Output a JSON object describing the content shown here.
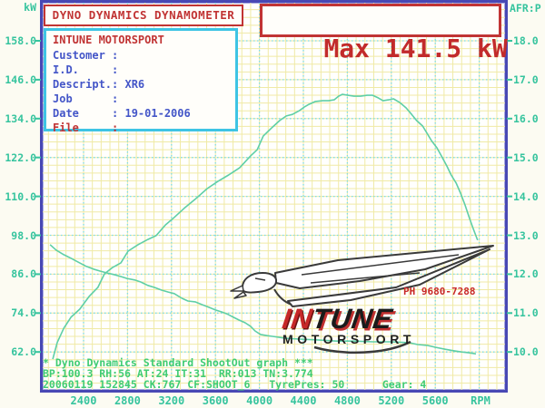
{
  "colors": {
    "red": "#c13434",
    "blue": "#4456c8",
    "cyan_border": "#3ec4e4",
    "teal_axis": "#36c49e",
    "green_status": "#40cc74",
    "curve_green": "#5ecfa6",
    "grid_major_cyan": "#7edce8",
    "grid_minor_yellow": "#f0eaa6",
    "plot_border_blue": "#4848b4"
  },
  "header": {
    "dyno_title": "DYNO DYNAMICS DYNAMOMETER",
    "max_label": "Max 141.5 kW"
  },
  "info_box": {
    "title": "INTUNE MOTORSPORT",
    "rows": [
      {
        "text": "Customer :",
        "accent": "blue"
      },
      {
        "text": "I.D.     :",
        "accent": "blue"
      },
      {
        "text": "Descript.: XR6",
        "accent": "blue"
      },
      {
        "text": "Job      :",
        "accent": "blue"
      },
      {
        "text": "Date     : 19-01-2006",
        "accent": "blue"
      },
      {
        "text": "File     :",
        "accent": "red"
      }
    ]
  },
  "logo": {
    "phone": "PH 9680-7288",
    "brand_in": "IN",
    "brand_tune": "TUNE",
    "brand_sub": "MOTORSPORT"
  },
  "status_lines": [
    "* Dyno Dynamics Standard ShootOut graph ***",
    "BP:100.3 RH:56 AT:24 IT:31  RR:013 TN:3.774",
    "20060119 152845 CK:767 CF:SHOOT_6   TyrePres: 50      Gear: 4"
  ],
  "chart_data": {
    "type": "line",
    "title": "Max 141.5 kW",
    "x_unit": "RPM",
    "y_left_unit": "kW",
    "y_right_unit": "AFR:P",
    "x_ticks": [
      "2400",
      "2800",
      "3200",
      "3600",
      "4000",
      "4400",
      "4800",
      "5200",
      "5600"
    ],
    "y_left_ticks": [
      "158.0",
      "146.0",
      "134.0",
      "122.0",
      "110.0",
      "98.0",
      "86.0",
      "74.0",
      "62.0"
    ],
    "y_right_ticks": [
      "18.0",
      "17.0",
      "16.0",
      "15.0",
      "14.0",
      "13.0",
      "12.0",
      "11.0",
      "10.0"
    ],
    "x_range_rpm": [
      2030,
      6230
    ],
    "y_left_range_kw": [
      58.6,
      158.0
    ],
    "y_right_range_afr": [
      9.0,
      18.0
    ],
    "grid": "on",
    "series": [
      {
        "name": "power_kw",
        "axis": "left",
        "points": [
          [
            2120,
            59.8
          ],
          [
            2160,
            64.9
          ],
          [
            2220,
            69.3
          ],
          [
            2285,
            72.7
          ],
          [
            2365,
            75.2
          ],
          [
            2450,
            79.1
          ],
          [
            2530,
            81.9
          ],
          [
            2590,
            86.1
          ],
          [
            2665,
            88.1
          ],
          [
            2740,
            89.5
          ],
          [
            2805,
            93.1
          ],
          [
            2895,
            95.1
          ],
          [
            2985,
            96.7
          ],
          [
            3060,
            97.9
          ],
          [
            3145,
            101.2
          ],
          [
            3225,
            103.5
          ],
          [
            3315,
            106.3
          ],
          [
            3415,
            109.1
          ],
          [
            3525,
            112.4
          ],
          [
            3625,
            114.7
          ],
          [
            3720,
            116.6
          ],
          [
            3820,
            118.8
          ],
          [
            3920,
            122.5
          ],
          [
            3980,
            124.4
          ],
          [
            4035,
            128.6
          ],
          [
            4120,
            131.4
          ],
          [
            4185,
            133.4
          ],
          [
            4245,
            134.8
          ],
          [
            4300,
            135.3
          ],
          [
            4365,
            136.5
          ],
          [
            4410,
            137.6
          ],
          [
            4450,
            138.4
          ],
          [
            4510,
            139.3
          ],
          [
            4575,
            139.5
          ],
          [
            4630,
            139.5
          ],
          [
            4680,
            139.8
          ],
          [
            4720,
            140.9
          ],
          [
            4755,
            141.5
          ],
          [
            4805,
            141.2
          ],
          [
            4860,
            140.9
          ],
          [
            4920,
            140.9
          ],
          [
            4980,
            141.2
          ],
          [
            5030,
            141.2
          ],
          [
            5080,
            140.4
          ],
          [
            5125,
            139.5
          ],
          [
            5175,
            139.8
          ],
          [
            5220,
            140.1
          ],
          [
            5275,
            139.0
          ],
          [
            5335,
            137.3
          ],
          [
            5385,
            135.3
          ],
          [
            5430,
            133.4
          ],
          [
            5485,
            131.7
          ],
          [
            5525,
            129.5
          ],
          [
            5565,
            127.2
          ],
          [
            5615,
            125.0
          ],
          [
            5655,
            122.5
          ],
          [
            5705,
            119.4
          ],
          [
            5745,
            116.6
          ],
          [
            5790,
            114.1
          ],
          [
            5830,
            111.0
          ],
          [
            5870,
            107.4
          ],
          [
            5910,
            103.4
          ],
          [
            5945,
            100.1
          ],
          [
            5985,
            96.5
          ]
        ]
      },
      {
        "name": "afr",
        "axis": "right",
        "points": [
          [
            2095,
            12.76
          ],
          [
            2150,
            12.62
          ],
          [
            2220,
            12.5
          ],
          [
            2285,
            12.41
          ],
          [
            2350,
            12.31
          ],
          [
            2425,
            12.2
          ],
          [
            2490,
            12.13
          ],
          [
            2550,
            12.08
          ],
          [
            2615,
            12.03
          ],
          [
            2675,
            11.99
          ],
          [
            2740,
            11.94
          ],
          [
            2795,
            11.89
          ],
          [
            2865,
            11.85
          ],
          [
            2920,
            11.8
          ],
          [
            2985,
            11.71
          ],
          [
            3045,
            11.66
          ],
          [
            3110,
            11.59
          ],
          [
            3170,
            11.54
          ],
          [
            3225,
            11.5
          ],
          [
            3295,
            11.38
          ],
          [
            3350,
            11.31
          ],
          [
            3415,
            11.29
          ],
          [
            3475,
            11.22
          ],
          [
            3540,
            11.15
          ],
          [
            3600,
            11.08
          ],
          [
            3655,
            11.03
          ],
          [
            3705,
            10.98
          ],
          [
            3765,
            10.89
          ],
          [
            3815,
            10.82
          ],
          [
            3870,
            10.75
          ],
          [
            3920,
            10.66
          ],
          [
            3960,
            10.54
          ],
          [
            4010,
            10.45
          ],
          [
            4070,
            10.42
          ],
          [
            4120,
            10.4
          ],
          [
            4175,
            10.38
          ],
          [
            4245,
            10.35
          ],
          [
            4365,
            10.33
          ],
          [
            4530,
            10.31
          ],
          [
            4700,
            10.28
          ],
          [
            4865,
            10.28
          ],
          [
            5030,
            10.26
          ],
          [
            5195,
            10.26
          ],
          [
            5360,
            10.24
          ],
          [
            5440,
            10.19
          ],
          [
            5525,
            10.17
          ],
          [
            5605,
            10.12
          ],
          [
            5690,
            10.07
          ],
          [
            5770,
            10.03
          ],
          [
            5840,
            10.0
          ],
          [
            5905,
            9.98
          ],
          [
            5970,
            9.95
          ]
        ]
      }
    ]
  }
}
